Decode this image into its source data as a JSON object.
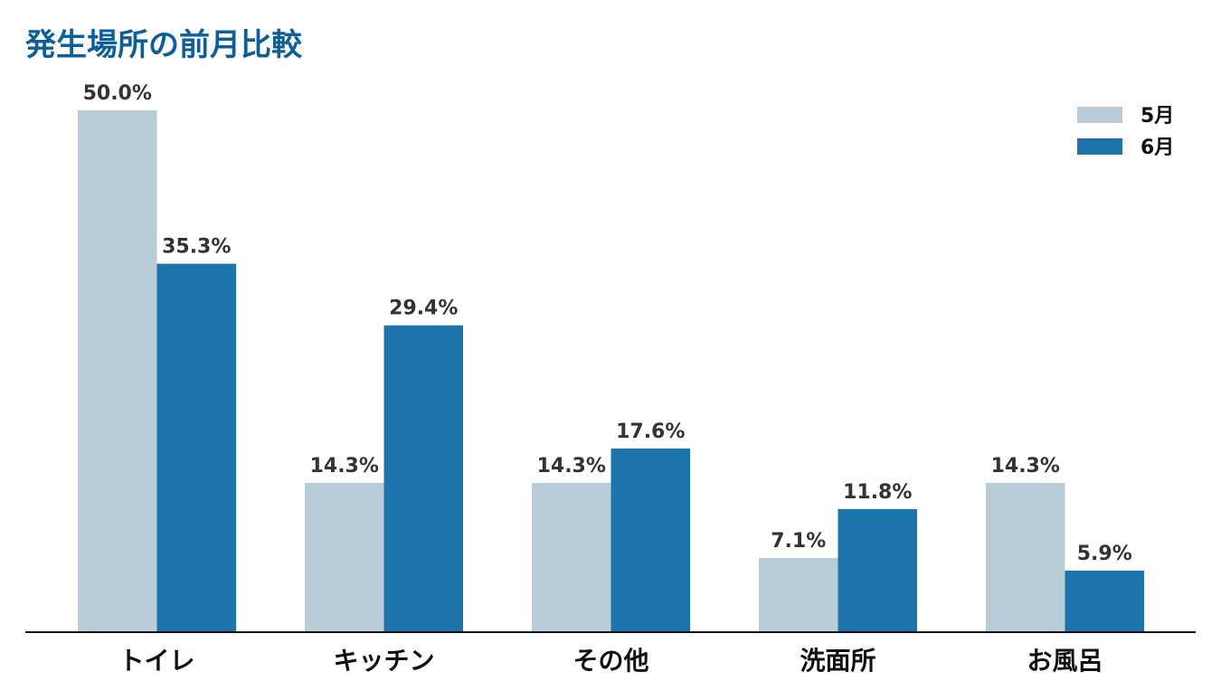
{
  "chart_data": {
    "type": "bar",
    "title": "発生場所の前月比較",
    "categories": [
      "トイレ",
      "キッチン",
      "その他",
      "洗面所",
      "お風呂"
    ],
    "series": [
      {
        "name": "5月",
        "values": [
          50.0,
          14.3,
          14.3,
          7.1,
          14.3
        ],
        "labels": [
          "50.0%",
          "14.3%",
          "14.3%",
          "7.1%",
          "14.3%"
        ],
        "color": "#b8cdd7"
      },
      {
        "name": "6月",
        "values": [
          35.3,
          29.4,
          17.6,
          11.8,
          5.9
        ],
        "labels": [
          "35.3%",
          "29.4%",
          "17.6%",
          "11.8%",
          "5.9%"
        ],
        "color": "#1c74aa"
      }
    ],
    "ylim": [
      0,
      50
    ],
    "grid": false,
    "legend": "top-right",
    "axis_color": "#111111"
  }
}
